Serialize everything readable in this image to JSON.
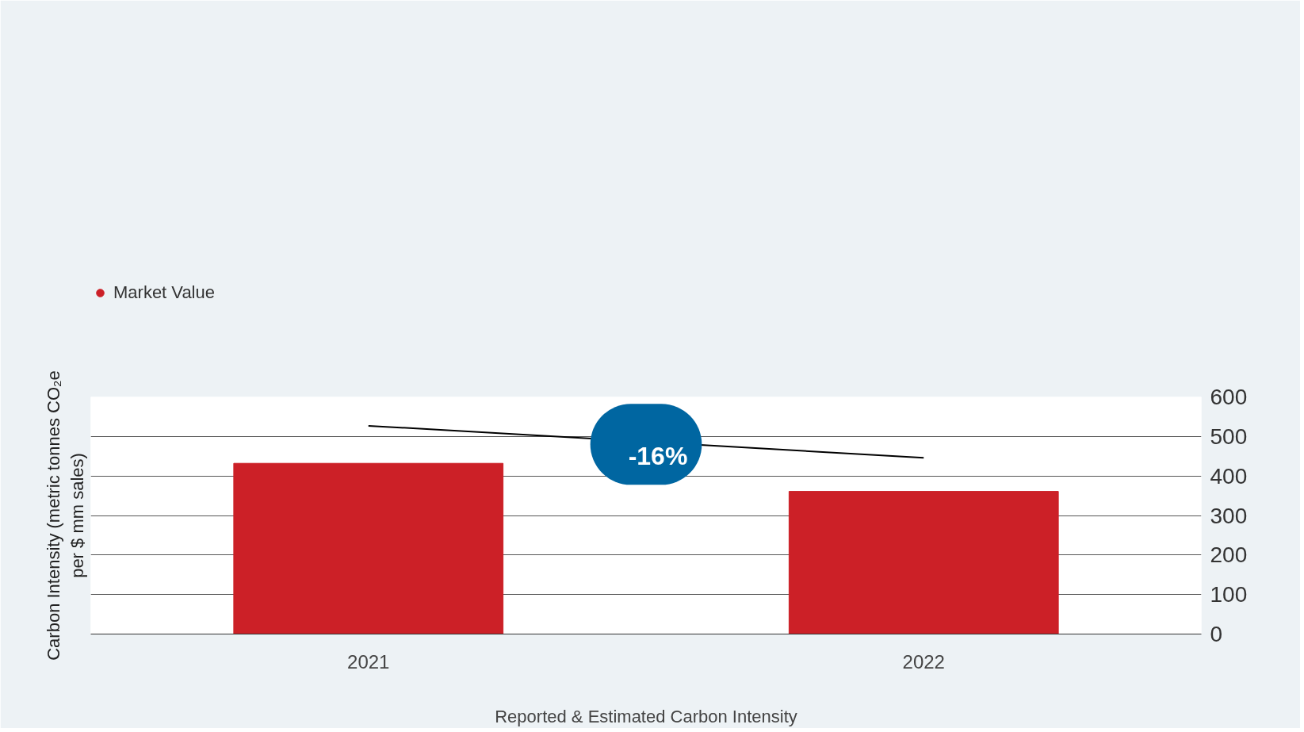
{
  "chart_data": {
    "type": "bar",
    "categories": [
      "2021",
      "2022"
    ],
    "series": [
      {
        "name": "Market Value",
        "color": "#cc2027",
        "values": [
          432,
          361
        ]
      },
      {
        "type": "line",
        "color": "#000000",
        "values": [
          527,
          446
        ]
      }
    ],
    "ylabel": "Carbon Intensity (metric tonnes CO₂e\nper $ mm sales)",
    "xlabel": "Reported & Estimated Carbon Intensity",
    "annotations": [
      "-16%"
    ],
    "ylim": [
      0,
      600
    ],
    "yticks": [
      0,
      100,
      200,
      300,
      400,
      500,
      600
    ],
    "grid": "y",
    "legend": "top left",
    "marker": "none",
    "line_style": "solid"
  }
}
